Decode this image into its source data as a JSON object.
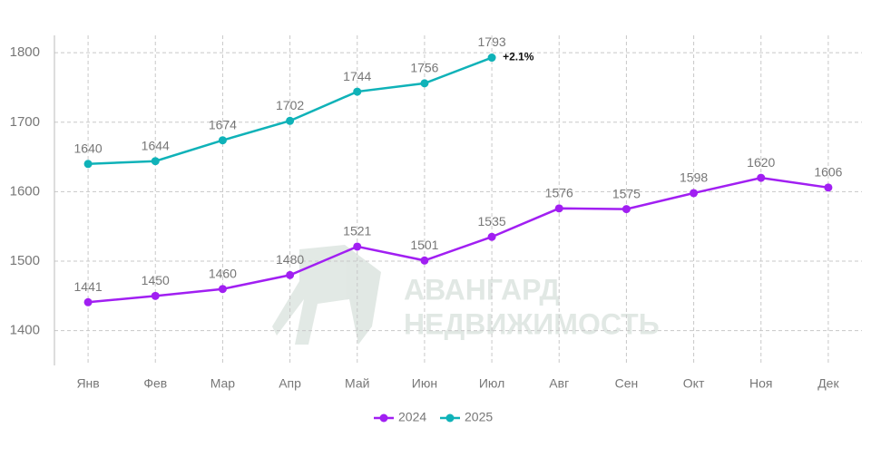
{
  "chart_data": {
    "type": "line",
    "categories": [
      "Янв",
      "Фев",
      "Мар",
      "Апр",
      "Май",
      "Июн",
      "Июл",
      "Авг",
      "Сен",
      "Окт",
      "Ноя",
      "Дек"
    ],
    "series": [
      {
        "name": "2024",
        "color": "#a11ff2",
        "values": [
          1441,
          1450,
          1460,
          1480,
          1521,
          1501,
          1535,
          1576,
          1575,
          1598,
          1620,
          1606
        ]
      },
      {
        "name": "2025",
        "color": "#0fb2b8",
        "values": [
          1640,
          1644,
          1674,
          1702,
          1744,
          1756,
          1793,
          null,
          null,
          null,
          null,
          null
        ]
      }
    ],
    "ylim": [
      1350,
      1825
    ],
    "yticks": [
      1400,
      1500,
      1600,
      1700,
      1800
    ],
    "grid": true,
    "legend": "bottom",
    "annotation": "+2.1%",
    "watermark": [
      "АВАНГАРД",
      "НЕДВИЖИМОСТЬ"
    ]
  }
}
